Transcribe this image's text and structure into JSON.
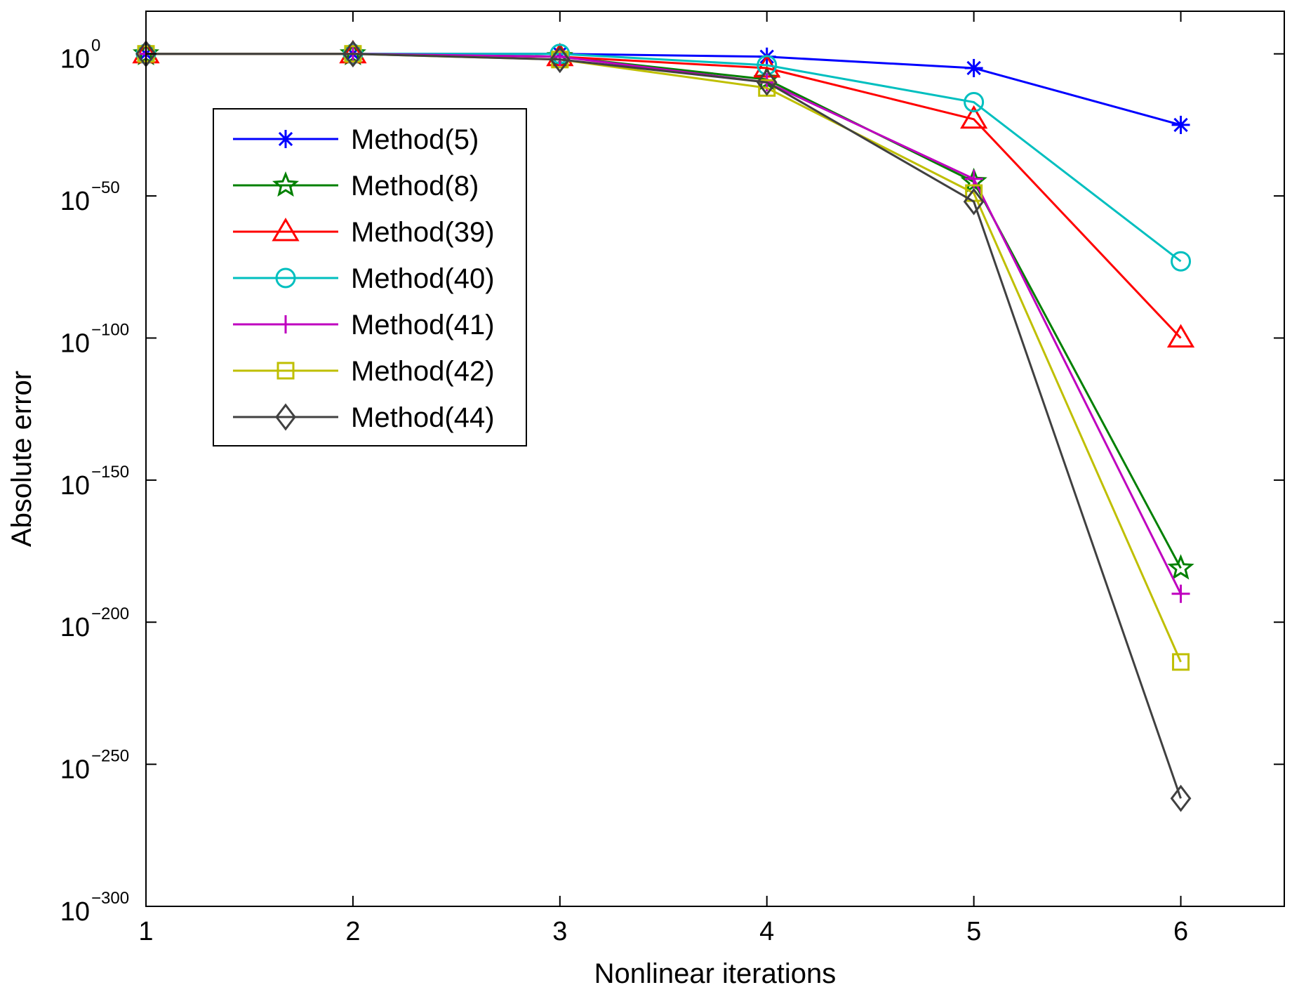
{
  "chart_data": {
    "type": "line",
    "xlabel": "Nonlinear iterations",
    "ylabel": "Absolute error",
    "y_scale": "log",
    "x": [
      1,
      2,
      3,
      4,
      5,
      6
    ],
    "xlim": [
      1,
      6.5
    ],
    "ylim_exponent": [
      -300,
      15
    ],
    "x_ticks": [
      "1",
      "2",
      "3",
      "4",
      "5",
      "6"
    ],
    "y_ticks": [
      {
        "base": "10",
        "exp": "0",
        "value": 0
      },
      {
        "base": "10",
        "exp": "−50",
        "value": -50
      },
      {
        "base": "10",
        "exp": "−100",
        "value": -100
      },
      {
        "base": "10",
        "exp": "−150",
        "value": -150
      },
      {
        "base": "10",
        "exp": "−200",
        "value": -200
      },
      {
        "base": "10",
        "exp": "−250",
        "value": -250
      },
      {
        "base": "10",
        "exp": "−300",
        "value": -300
      }
    ],
    "legend_position": "upper-left",
    "series": [
      {
        "name": "Method(5)",
        "color": "#0000ff",
        "marker": "asterisk",
        "log10_values": [
          0,
          0,
          0,
          -1,
          -5,
          -25
        ]
      },
      {
        "name": "Method(8)",
        "color": "#008000",
        "marker": "pentagram",
        "log10_values": [
          0,
          0,
          -1,
          -9,
          -45,
          -181
        ]
      },
      {
        "name": "Method(39)",
        "color": "#ff0000",
        "marker": "triangle",
        "log10_values": [
          0,
          0,
          -1,
          -5,
          -23,
          -100
        ]
      },
      {
        "name": "Method(40)",
        "color": "#00bfbf",
        "marker": "circle",
        "log10_values": [
          0,
          0,
          0,
          -4,
          -17,
          -73
        ]
      },
      {
        "name": "Method(41)",
        "color": "#bf00bf",
        "marker": "plus",
        "log10_values": [
          0,
          0,
          -1,
          -10,
          -44,
          -190
        ]
      },
      {
        "name": "Method(42)",
        "color": "#bfbf00",
        "marker": "square",
        "log10_values": [
          0,
          0,
          -2,
          -12,
          -49,
          -214
        ]
      },
      {
        "name": "Method(44)",
        "color": "#404040",
        "marker": "diamond",
        "log10_values": [
          0,
          0,
          -2,
          -10,
          -52,
          -262
        ]
      }
    ]
  }
}
